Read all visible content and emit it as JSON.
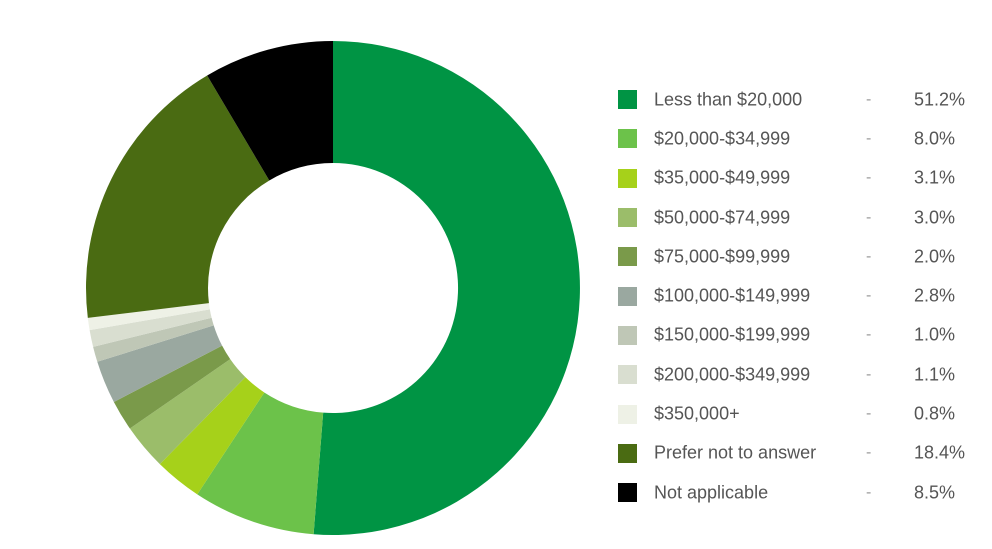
{
  "chart_data": {
    "type": "pie",
    "variant": "donut",
    "title": "",
    "legend_position": "right",
    "slices": [
      {
        "label": "Less than $20,000",
        "value": 51.2,
        "display": "51.2%",
        "color": "#009444"
      },
      {
        "label": "$20,000-$34,999",
        "value": 8.0,
        "display": "8.0%",
        "color": "#6cc24a"
      },
      {
        "label": "$35,000-$49,999",
        "value": 3.1,
        "display": "3.1%",
        "color": "#a6d11a"
      },
      {
        "label": "$50,000-$74,999",
        "value": 3.0,
        "display": "3.0%",
        "color": "#9bbd6a"
      },
      {
        "label": "$75,000-$99,999",
        "value": 2.0,
        "display": "2.0%",
        "color": "#7a9a4a"
      },
      {
        "label": "$100,000-$149,999",
        "value": 2.8,
        "display": "2.8%",
        "color": "#9aa8a0"
      },
      {
        "label": "$150,000-$199,999",
        "value": 1.0,
        "display": "1.0%",
        "color": "#bfc7b6"
      },
      {
        "label": "$200,000-$349,999",
        "value": 1.1,
        "display": "1.1%",
        "color": "#d9ded0"
      },
      {
        "label": "$350,000+",
        "value": 0.8,
        "display": "0.8%",
        "color": "#eef1e6"
      },
      {
        "label": "Prefer not to answer",
        "value": 18.4,
        "display": "18.4%",
        "color": "#4a6b12"
      },
      {
        "label": "Not applicable",
        "value": 8.5,
        "display": "8.5%",
        "color": "#000000"
      }
    ],
    "legend_separator": "-"
  }
}
